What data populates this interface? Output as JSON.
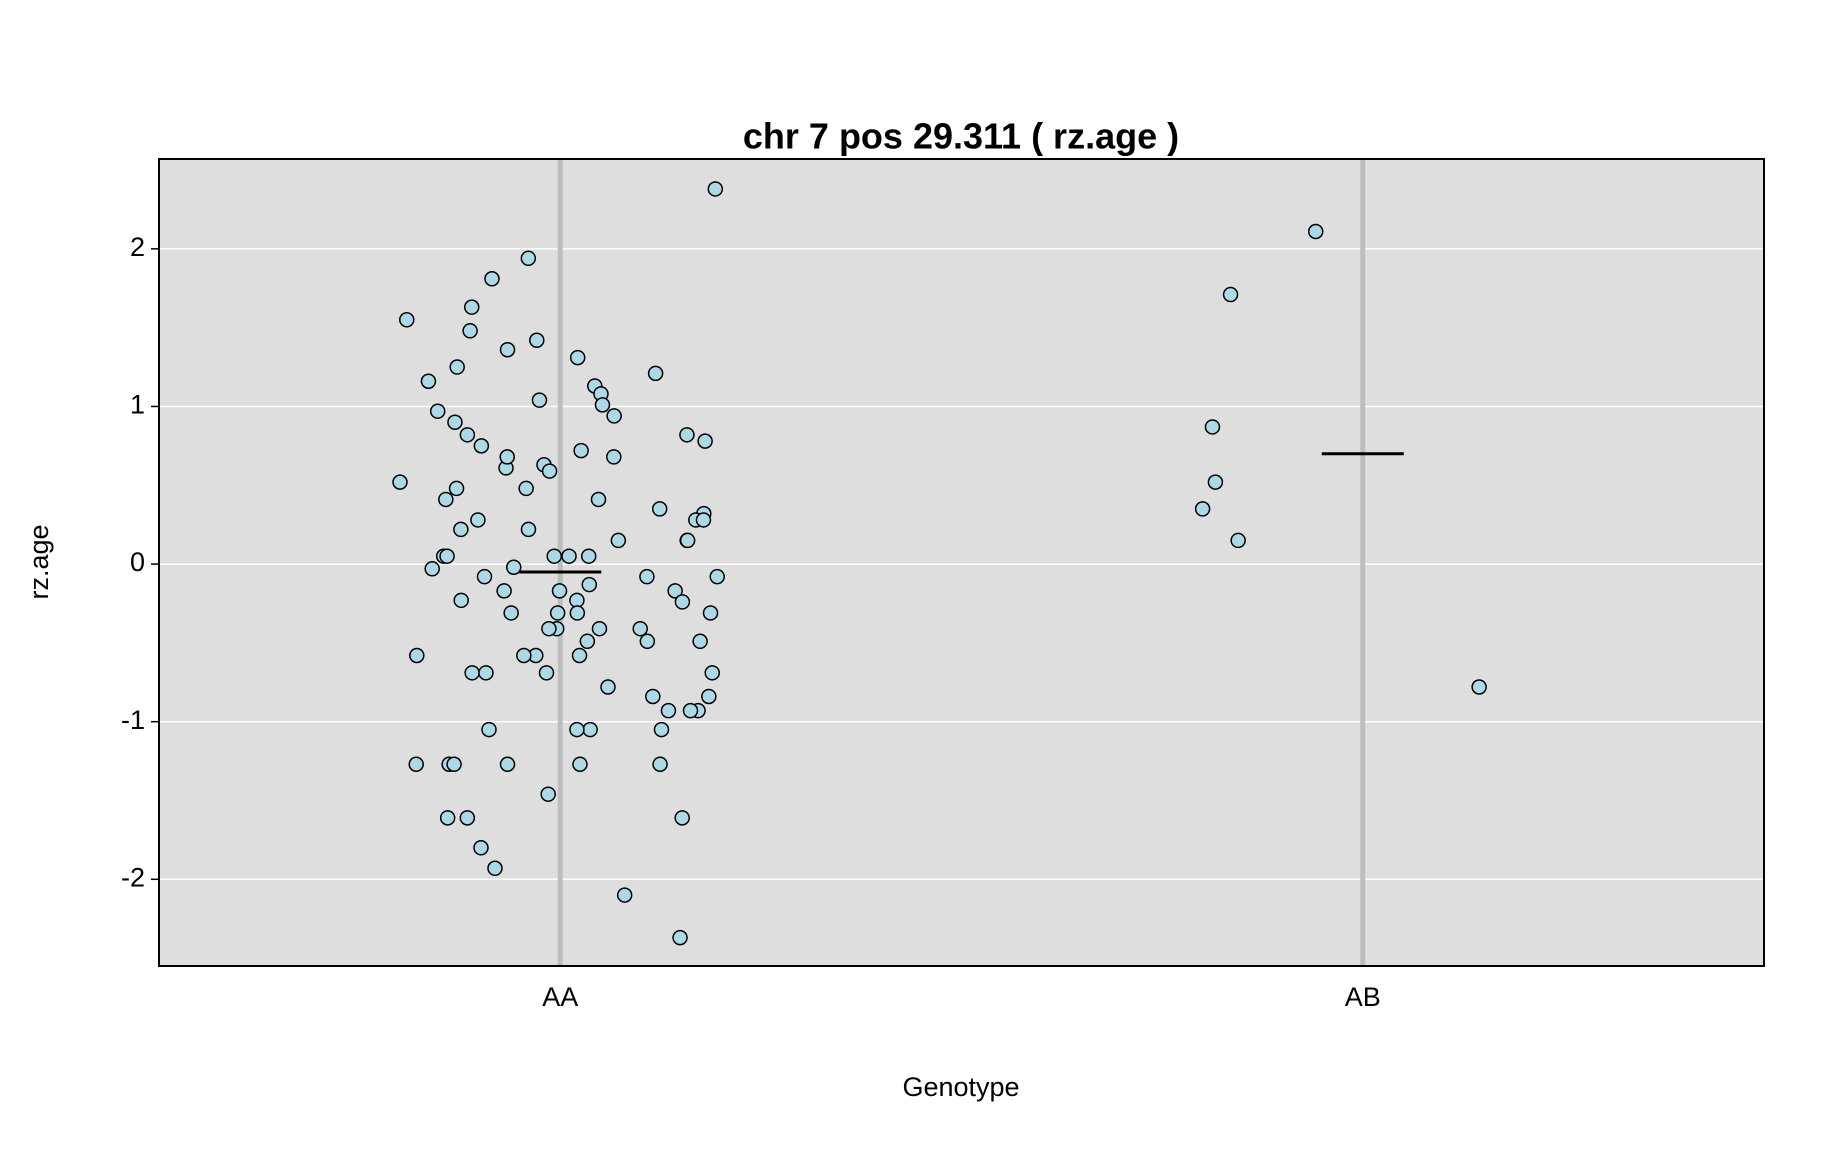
{
  "chart_data": {
    "type": "strip",
    "title": "chr 7 pos 29.311 ( rz.age )",
    "x_label": "Genotype",
    "y_label": "rz.age",
    "categories": [
      "AA",
      "AB"
    ],
    "values": [
      [
        2.38,
        1.81,
        1.94,
        1.63,
        1.55,
        1.25,
        1.21,
        1.16,
        1.04,
        0.9,
        0.82,
        0.75,
        0.78,
        0.82,
        0.61,
        0.63,
        0.52,
        0.48,
        0.41,
        0.22,
        0.15,
        0.15,
        0.05,
        -0.02,
        -0.08,
        -0.03,
        -0.13,
        -0.17,
        -0.17,
        -0.23,
        -0.23,
        -0.31,
        -0.31,
        -0.41,
        -0.49,
        -0.58,
        -0.58,
        -0.58,
        -0.78,
        -0.93,
        -0.84,
        -1.05,
        -1.05,
        -1.27,
        -1.27,
        -1.61,
        -1.8,
        -1.93,
        -2.37,
        0.59,
        0.28,
        0.32,
        0.05,
        0.05,
        -0.24,
        -0.41,
        -0.49,
        -0.69,
        -0.93,
        -0.84,
        -1.05,
        -1.27,
        -1.46,
        -1.61,
        -1.61,
        -2.1,
        1.36,
        1.31,
        1.42,
        1.48,
        1.13,
        1.08,
        1.01,
        0.97,
        0.94,
        0.72,
        0.68,
        0.68,
        0.48,
        0.35,
        0.41,
        0.22,
        0.28,
        0.28,
        0.15,
        0.05,
        0.05,
        -0.08,
        -0.08,
        -0.17,
        -0.31,
        -0.31,
        -0.41,
        -0.41,
        -0.58,
        -0.49,
        -0.69,
        -0.69,
        -0.69,
        -0.93,
        -1.05,
        -1.27,
        -1.27,
        -1.27
      ],
      [
        2.11,
        1.71,
        0.87,
        0.52,
        0.35,
        0.15,
        -0.78
      ]
    ],
    "means": [
      -0.05,
      0.7
    ],
    "color": "#add8e6",
    "ylim": [
      -2.55,
      2.57
    ],
    "yticks": [
      -2,
      -1,
      0,
      1,
      2
    ],
    "grid": true
  }
}
